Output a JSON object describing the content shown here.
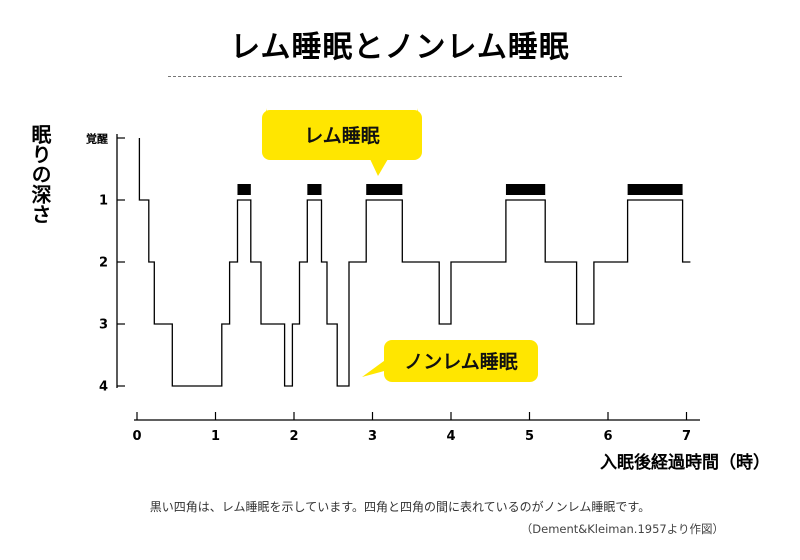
{
  "title": "レム睡眠とノンレム睡眠",
  "ylabel": "眠りの深さ",
  "xlabel": "入眠後経過時間（時）",
  "caption": "黒い四角は、レム睡眠を示しています。四角と四角の間に表れているのがノンレム睡眠です。",
  "source": "（Dement&Kleiman.1957より作図）",
  "callouts": {
    "rem": "レム睡眠",
    "nonrem": "ノンレム睡眠"
  },
  "colors": {
    "callout_fill": "#ffe600",
    "line": "#000000",
    "rem_block": "#000000"
  },
  "chart_data": {
    "type": "line",
    "title": "レム睡眠とノンレム睡眠",
    "xlabel": "入眠後経過時間（時）",
    "ylabel": "眠りの深さ",
    "x_ticks": [
      0,
      1,
      2,
      3,
      4,
      5,
      6,
      7
    ],
    "y_ticks": [
      {
        "value": 0,
        "label": "覚醒"
      },
      {
        "value": 1,
        "label": "1"
      },
      {
        "value": 2,
        "label": "2"
      },
      {
        "value": 3,
        "label": "3"
      },
      {
        "value": 4,
        "label": "4"
      }
    ],
    "xlim": [
      0,
      7.05
    ],
    "ylim": [
      0,
      4
    ],
    "y_inverted": true,
    "grid": false,
    "series": [
      {
        "points": [
          [
            0.03,
            0
          ],
          [
            0.03,
            1
          ],
          [
            0.15,
            1
          ],
          [
            0.15,
            2
          ],
          [
            0.22,
            2
          ],
          [
            0.22,
            3
          ],
          [
            0.45,
            3
          ],
          [
            0.45,
            4
          ],
          [
            1.08,
            4
          ],
          [
            1.08,
            3
          ],
          [
            1.18,
            3
          ],
          [
            1.18,
            2
          ],
          [
            1.28,
            2
          ],
          [
            1.28,
            1
          ],
          [
            1.45,
            1
          ],
          [
            1.45,
            2
          ],
          [
            1.58,
            2
          ],
          [
            1.58,
            3
          ],
          [
            1.88,
            3
          ],
          [
            1.88,
            4
          ],
          [
            1.98,
            4
          ],
          [
            1.98,
            3
          ],
          [
            2.07,
            3
          ],
          [
            2.07,
            2
          ],
          [
            2.17,
            2
          ],
          [
            2.17,
            1
          ],
          [
            2.35,
            1
          ],
          [
            2.35,
            2
          ],
          [
            2.42,
            2
          ],
          [
            2.42,
            3
          ],
          [
            2.55,
            3
          ],
          [
            2.55,
            4
          ],
          [
            2.7,
            4
          ],
          [
            2.7,
            2
          ],
          [
            2.92,
            2
          ],
          [
            2.92,
            1
          ],
          [
            3.38,
            1
          ],
          [
            3.38,
            2
          ],
          [
            3.85,
            2
          ],
          [
            3.85,
            3
          ],
          [
            4.0,
            3
          ],
          [
            4.0,
            2
          ],
          [
            4.7,
            2
          ],
          [
            4.7,
            1
          ],
          [
            5.2,
            1
          ],
          [
            5.2,
            2
          ],
          [
            5.6,
            2
          ],
          [
            5.6,
            3
          ],
          [
            5.82,
            3
          ],
          [
            5.82,
            2
          ],
          [
            6.25,
            2
          ],
          [
            6.25,
            1
          ],
          [
            6.95,
            1
          ],
          [
            6.95,
            2
          ],
          [
            7.05,
            2
          ]
        ]
      }
    ],
    "rem_periods": [
      [
        1.28,
        1.45
      ],
      [
        2.17,
        2.35
      ],
      [
        2.92,
        3.38
      ],
      [
        4.7,
        5.2
      ],
      [
        6.25,
        6.95
      ]
    ]
  }
}
